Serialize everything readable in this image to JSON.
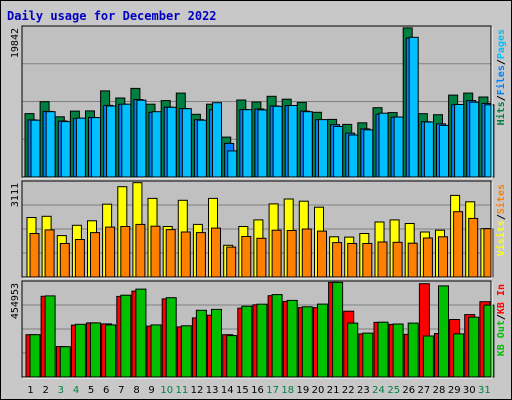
{
  "title": "Daily usage for December 2022",
  "colors": {
    "background": "#c8c8c8",
    "plot_bg": "#c0c0c0",
    "hits": "#008040",
    "files": "#0080ff",
    "pages": "#00c0ff",
    "visits": "#ffff00",
    "sites": "#ff8000",
    "kbin": "#ff0000",
    "kbout": "#00c000",
    "title": "#0000c0",
    "weekday_tick": "#000000",
    "weekend_tick": "#008040"
  },
  "chart_data": [
    {
      "type": "bar",
      "name": "top-panel",
      "ymax_label": "19842",
      "ylim": [
        0,
        19842
      ],
      "categories": [
        "1",
        "2",
        "3",
        "4",
        "5",
        "6",
        "7",
        "8",
        "9",
        "10",
        "11",
        "12",
        "13",
        "14",
        "15",
        "16",
        "17",
        "18",
        "19",
        "20",
        "21",
        "22",
        "23",
        "24",
        "25",
        "26",
        "27",
        "28",
        "29",
        "30",
        "31"
      ],
      "weekend": [
        false,
        false,
        true,
        true,
        false,
        false,
        false,
        false,
        false,
        true,
        true,
        false,
        false,
        false,
        false,
        false,
        true,
        true,
        false,
        false,
        false,
        false,
        false,
        true,
        true,
        false,
        false,
        false,
        false,
        false,
        true
      ],
      "side_labels": [
        {
          "text": "Hits",
          "color_key": "hits"
        },
        {
          "text": "/",
          "color_key": "slash"
        },
        {
          "text": "Files",
          "color_key": "files"
        },
        {
          "text": "/",
          "color_key": "slash"
        },
        {
          "text": "Pages",
          "color_key": "pages"
        }
      ],
      "series": [
        {
          "name": "Hits",
          "color_key": "hits",
          "values": [
            8440,
            10030,
            8020,
            8770,
            8800,
            11460,
            10520,
            11800,
            9690,
            10170,
            11170,
            8350,
            9700,
            5310,
            10250,
            9990,
            10750,
            10360,
            9940,
            8610,
            7670,
            7010,
            7220,
            9230,
            8570,
            19850,
            8430,
            8300,
            10910,
            11170,
            10660
          ]
        },
        {
          "name": "Files",
          "color_key": "files",
          "values": [
            7600,
            8730,
            7460,
            7810,
            7930,
            9530,
            9680,
            10320,
            8600,
            9300,
            9110,
            7630,
            8950,
            4480,
            8980,
            9060,
            9460,
            9510,
            8780,
            7620,
            6970,
            5850,
            6400,
            8350,
            7970,
            18490,
            7360,
            7070,
            9620,
            10170,
            9800
          ]
        },
        {
          "name": "Pages",
          "color_key": "pages",
          "values": [
            7560,
            8690,
            7380,
            7850,
            7910,
            9450,
            9700,
            10230,
            8690,
            9280,
            9100,
            7570,
            9890,
            3470,
            8960,
            8930,
            9410,
            9520,
            8700,
            7640,
            6730,
            5590,
            6290,
            8500,
            7990,
            18600,
            7320,
            6870,
            9650,
            9960,
            9620
          ]
        }
      ]
    },
    {
      "type": "bar",
      "name": "middle-panel",
      "ymax_label": "3111",
      "ylim": [
        0,
        3111
      ],
      "categories": [
        "1",
        "2",
        "3",
        "4",
        "5",
        "6",
        "7",
        "8",
        "9",
        "10",
        "11",
        "12",
        "13",
        "14",
        "15",
        "16",
        "17",
        "18",
        "19",
        "20",
        "21",
        "22",
        "23",
        "24",
        "25",
        "26",
        "27",
        "28",
        "29",
        "30",
        "31"
      ],
      "weekend": [
        false,
        false,
        true,
        true,
        false,
        false,
        false,
        false,
        false,
        true,
        true,
        false,
        false,
        false,
        false,
        false,
        true,
        true,
        false,
        false,
        false,
        false,
        false,
        true,
        true,
        false,
        false,
        false,
        false,
        false,
        true
      ],
      "side_labels": [
        {
          "text": "Visits",
          "color_key": "visits"
        },
        {
          "text": "/",
          "color_key": "slash"
        },
        {
          "text": "Sites",
          "color_key": "sites"
        }
      ],
      "series": [
        {
          "name": "Visits",
          "color_key": "visits",
          "values": [
            1970,
            2010,
            1370,
            1710,
            1860,
            2410,
            2990,
            3120,
            2600,
            1670,
            2540,
            1740,
            2600,
            1050,
            1670,
            1890,
            2420,
            2580,
            2510,
            2310,
            1330,
            1320,
            1440,
            1820,
            1890,
            1770,
            1490,
            1550,
            2700,
            2490,
            1600
          ]
        },
        {
          "name": "Sites",
          "color_key": "sites",
          "values": [
            1440,
            1560,
            1110,
            1240,
            1470,
            1650,
            1670,
            1740,
            1680,
            1570,
            1490,
            1470,
            1620,
            990,
            1340,
            1280,
            1550,
            1540,
            1590,
            1520,
            1140,
            1110,
            1110,
            1160,
            1150,
            1120,
            1290,
            1330,
            2160,
            1940,
            1600
          ]
        }
      ]
    },
    {
      "type": "bar",
      "name": "bottom-panel",
      "ymax_label": "454953",
      "ylim": [
        0,
        454953
      ],
      "categories": [
        "1",
        "2",
        "3",
        "4",
        "5",
        "6",
        "7",
        "8",
        "9",
        "10",
        "11",
        "12",
        "13",
        "14",
        "15",
        "16",
        "17",
        "18",
        "19",
        "20",
        "21",
        "22",
        "23",
        "24",
        "25",
        "26",
        "27",
        "28",
        "29",
        "30",
        "31"
      ],
      "weekend": [
        false,
        false,
        true,
        true,
        false,
        false,
        false,
        false,
        false,
        true,
        true,
        false,
        false,
        false,
        false,
        false,
        true,
        true,
        false,
        false,
        false,
        false,
        false,
        true,
        true,
        false,
        false,
        false,
        false,
        false,
        true
      ],
      "side_labels": [
        {
          "text": "KB Out",
          "color_key": "kbout"
        },
        {
          "text": "/",
          "color_key": "slash"
        },
        {
          "text": "KB In",
          "color_key": "kbin"
        }
      ],
      "series": [
        {
          "name": "KB In",
          "color_key": "kbin",
          "values": [
            204650,
            390530,
            147770,
            251270,
            261890,
            257120,
            390180,
            415920,
            246280,
            377960,
            242250,
            286150,
            299160,
            204650,
            333220,
            349600,
            393420,
            365890,
            336110,
            336110,
            457830,
            318250,
            208780,
            264270,
            254770,
            206420,
            451520,
            210300,
            278100,
            301800,
            364390
          ]
        },
        {
          "name": "KB Out",
          "color_key": "kbout",
          "values": [
            204650,
            392440,
            146810,
            255090,
            261890,
            252320,
            395950,
            425480,
            252040,
            383690,
            248020,
            322800,
            327250,
            200600,
            342580,
            352550,
            398620,
            370690,
            339970,
            352910,
            457880,
            260980,
            212600,
            265140,
            256340,
            261040,
            198450,
            440890,
            208780,
            289590,
            348020
          ]
        }
      ]
    }
  ]
}
